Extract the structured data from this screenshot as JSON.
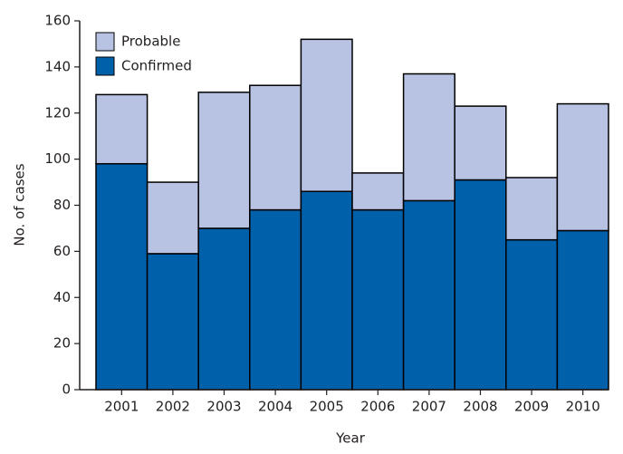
{
  "chart_data": {
    "type": "stacked_bar",
    "categories": [
      "2001",
      "2002",
      "2003",
      "2004",
      "2005",
      "2006",
      "2007",
      "2008",
      "2009",
      "2010"
    ],
    "series": [
      {
        "name": "Confirmed",
        "color": "#0060a9",
        "values": [
          98,
          59,
          70,
          78,
          86,
          78,
          82,
          91,
          65,
          69
        ]
      },
      {
        "name": "Probable",
        "color": "#b8c2e3",
        "values": [
          30,
          31,
          59,
          54,
          66,
          16,
          55,
          32,
          27,
          55
        ]
      }
    ],
    "x_label": "Year",
    "y_label": "No. of cases",
    "ylim": [
      0,
      160
    ],
    "yticks": [
      0,
      20,
      40,
      60,
      80,
      100,
      120,
      140,
      160
    ]
  }
}
